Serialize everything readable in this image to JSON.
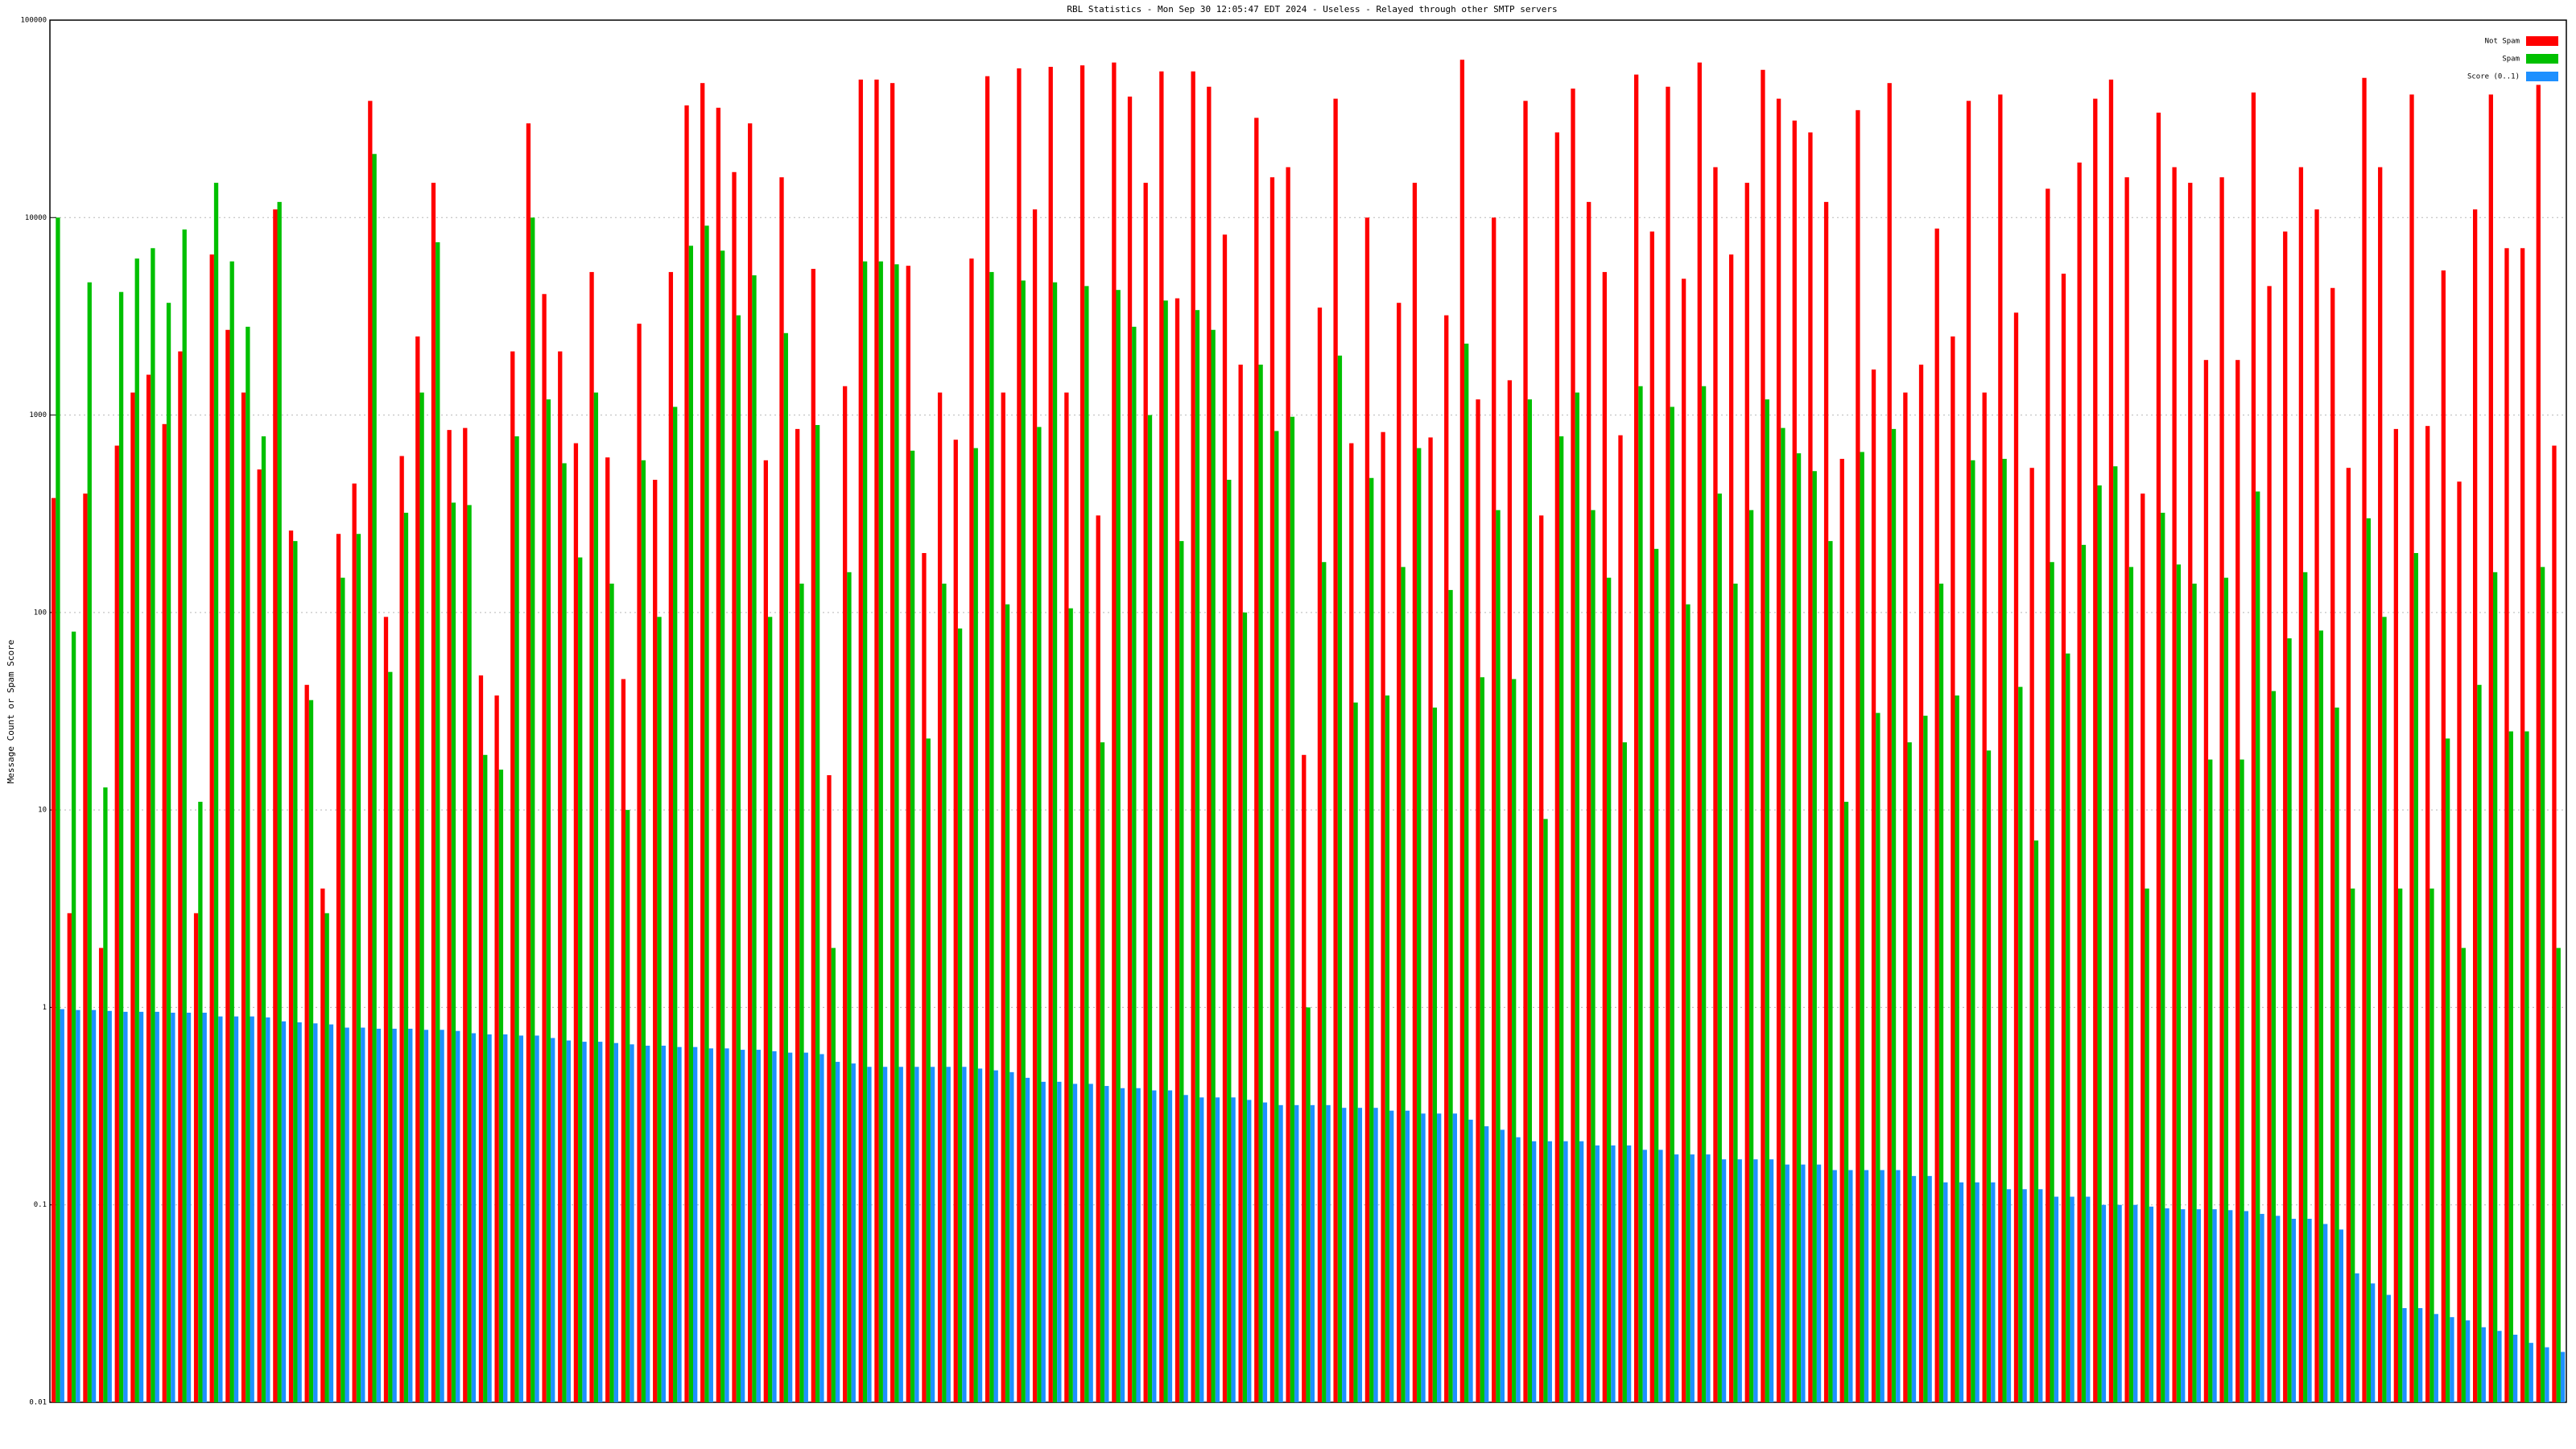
{
  "chart_data": {
    "type": "bar",
    "title": "RBL Statistics - Mon Sep 30 12:05:47 EDT 2024 - Useless - Relayed through other SMTP servers",
    "y_label": "Message Count or Spam Score",
    "log_scale": true,
    "grid": true,
    "legend": "top-right",
    "ylim": [
      0.01,
      100000
    ],
    "yticks": [
      0.01,
      0.1,
      1,
      10,
      100,
      1000,
      10000,
      100000
    ],
    "series": [
      {
        "name": "Not Spam",
        "color": "#ff0000",
        "values": [
          380,
          3,
          400,
          2,
          700,
          1300,
          1600,
          900,
          2100,
          3,
          6500,
          2700,
          1300,
          530,
          11000,
          260,
          43,
          4,
          250,
          450,
          39000,
          95,
          620,
          2500,
          15000,
          840,
          860,
          48,
          38,
          2100,
          30000,
          4100,
          2100,
          720,
          5300,
          610,
          46,
          2900,
          470,
          5300,
          37000,
          48000,
          36000,
          17000,
          30000,
          590,
          16000,
          850,
          5500,
          15,
          1400,
          50000,
          50000,
          48000,
          5700,
          200,
          1300,
          750,
          6200,
          52000,
          1300,
          57000,
          11000,
          58000,
          1300,
          59000,
          310,
          61000,
          41000,
          15000,
          55000,
          3900,
          55000,
          46000,
          8200,
          1800,
          32000,
          16000,
          18000,
          19,
          3500,
          40000,
          720,
          10000,
          820,
          3700,
          15000,
          770,
          3200,
          63000,
          1200,
          10000,
          1500,
          39000,
          310,
          27000,
          45000,
          12000,
          5300,
          790,
          53000,
          8500,
          46000,
          4900,
          61000,
          18000,
          6500,
          15000,
          56000,
          40000,
          31000,
          27000,
          12000,
          600,
          35000,
          1700,
          48000,
          1300,
          1800,
          8800,
          2500,
          39000,
          1300,
          42000,
          3300,
          540,
          14000,
          5200,
          19000,
          40000,
          50000,
          16000,
          400,
          34000,
          18000,
          15000,
          1900,
          16000,
          1900,
          43000,
          4500,
          8500,
          18000,
          11000,
          4400,
          540,
          51000,
          18000,
          850,
          42000,
          880,
          5400,
          460,
          11000,
          42000,
          7000,
          7000,
          47000,
          700
        ]
      },
      {
        "name": "Spam",
        "color": "#00c000",
        "values": [
          10000,
          80,
          4700,
          13,
          4200,
          6200,
          7000,
          3700,
          8700,
          11,
          15000,
          6000,
          2800,
          780,
          12000,
          230,
          36,
          3,
          150,
          250,
          21000,
          50,
          320,
          1300,
          7500,
          360,
          350,
          19,
          16,
          780,
          10000,
          1200,
          570,
          190,
          1300,
          140,
          10,
          590,
          95,
          1100,
          7200,
          9100,
          6800,
          3200,
          5100,
          95,
          2600,
          140,
          890,
          2,
          160,
          6000,
          6000,
          5800,
          660,
          23,
          140,
          83,
          680,
          5300,
          110,
          4800,
          870,
          4700,
          105,
          4500,
          22,
          4300,
          2800,
          1000,
          3800,
          230,
          3400,
          2700,
          470,
          100,
          1800,
          830,
          980,
          1,
          180,
          2000,
          35,
          480,
          38,
          170,
          680,
          33,
          130,
          2300,
          47,
          330,
          46,
          1200,
          9,
          780,
          1300,
          330,
          150,
          22,
          1400,
          210,
          1100,
          110,
          1400,
          400,
          140,
          330,
          1200,
          860,
          640,
          520,
          230,
          11,
          650,
          31,
          850,
          22,
          30,
          140,
          38,
          590,
          20,
          600,
          42,
          7,
          180,
          62,
          220,
          440,
          550,
          170,
          4,
          320,
          175,
          140,
          18,
          150,
          18,
          410,
          40,
          74,
          160,
          81,
          33,
          4,
          300,
          95,
          4,
          200,
          4,
          23,
          2,
          43,
          160,
          25,
          25,
          170,
          2
        ]
      },
      {
        "name": "Score (0..1)",
        "color": "#1e90ff",
        "values": [
          0.98,
          0.97,
          0.97,
          0.96,
          0.95,
          0.95,
          0.95,
          0.94,
          0.94,
          0.94,
          0.9,
          0.9,
          0.9,
          0.89,
          0.85,
          0.84,
          0.83,
          0.82,
          0.79,
          0.79,
          0.78,
          0.78,
          0.78,
          0.77,
          0.77,
          0.76,
          0.74,
          0.73,
          0.73,
          0.72,
          0.72,
          0.7,
          0.68,
          0.67,
          0.67,
          0.66,
          0.65,
          0.64,
          0.64,
          0.63,
          0.63,
          0.62,
          0.62,
          0.61,
          0.61,
          0.6,
          0.59,
          0.59,
          0.58,
          0.53,
          0.52,
          0.5,
          0.5,
          0.5,
          0.5,
          0.5,
          0.5,
          0.5,
          0.49,
          0.48,
          0.47,
          0.44,
          0.42,
          0.42,
          0.41,
          0.41,
          0.4,
          0.39,
          0.39,
          0.38,
          0.38,
          0.36,
          0.35,
          0.35,
          0.35,
          0.34,
          0.33,
          0.32,
          0.32,
          0.32,
          0.32,
          0.31,
          0.31,
          0.31,
          0.3,
          0.3,
          0.29,
          0.29,
          0.29,
          0.27,
          0.25,
          0.24,
          0.22,
          0.21,
          0.21,
          0.21,
          0.21,
          0.2,
          0.2,
          0.2,
          0.19,
          0.19,
          0.18,
          0.18,
          0.18,
          0.17,
          0.17,
          0.17,
          0.17,
          0.16,
          0.16,
          0.16,
          0.15,
          0.15,
          0.15,
          0.15,
          0.15,
          0.14,
          0.14,
          0.13,
          0.13,
          0.13,
          0.13,
          0.12,
          0.12,
          0.12,
          0.11,
          0.11,
          0.11,
          0.1,
          0.1,
          0.1,
          0.098,
          0.096,
          0.095,
          0.095,
          0.095,
          0.094,
          0.093,
          0.09,
          0.088,
          0.085,
          0.085,
          0.08,
          0.075,
          0.045,
          0.04,
          0.035,
          0.03,
          0.03,
          0.028,
          0.027,
          0.026,
          0.024,
          0.023,
          0.022,
          0.02,
          0.019,
          0.018
        ]
      }
    ]
  }
}
